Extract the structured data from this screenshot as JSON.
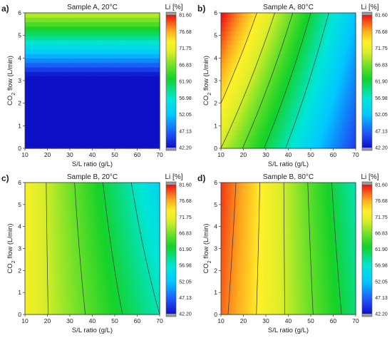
{
  "chart_data": [
    {
      "type": "heatmap",
      "panel_label": "a)",
      "title": "Sample A, 20°C",
      "xlabel": "S/L ratio (g/L)",
      "ylabel_main": "CO",
      "ylabel_sub": "2",
      "ylabel_rest": " flow (L/min)",
      "xlim": [
        10,
        70
      ],
      "ylim": [
        0,
        6
      ],
      "xticks": [
        "10",
        "20",
        "30",
        "40",
        "50",
        "60",
        "70"
      ],
      "yticks": [
        "0",
        "1",
        "2",
        "3",
        "4",
        "5",
        "6"
      ],
      "colorbar_title": "Li [%]",
      "grid": [
        [
          70,
          74,
          10
        ],
        [
          70,
          74,
          70
        ],
        [
          42,
          50,
          10
        ],
        [
          42,
          50,
          70
        ]
      ],
      "contour_levels": [
        70,
        66,
        62,
        58,
        54
      ]
    },
    {
      "type": "heatmap",
      "panel_label": "b)",
      "title": "Sample A, 80°C",
      "xlabel": "S/L ratio (g/L)",
      "ylabel_main": "CO",
      "ylabel_sub": "2",
      "ylabel_rest": " flow (L/min)",
      "xlim": [
        10,
        70
      ],
      "ylim": [
        0,
        6
      ],
      "xticks": [
        "10",
        "20",
        "30",
        "40",
        "50",
        "60",
        "70"
      ],
      "yticks": [
        "0",
        "1",
        "2",
        "3",
        "4",
        "5",
        "6"
      ],
      "colorbar_title": "Li [%]",
      "grid": [
        [
          10,
          0,
          70
        ],
        [
          10,
          6,
          82
        ],
        [
          70,
          0,
          45
        ],
        [
          70,
          6,
          52
        ]
      ],
      "contour_levels": [
        74,
        70,
        66,
        62,
        58
      ]
    },
    {
      "type": "heatmap",
      "panel_label": "c)",
      "title": "Sample B, 20°C",
      "xlabel": "S/L ratio (g/L)",
      "ylabel_main": "CO",
      "ylabel_sub": "2",
      "ylabel_rest": " flow (L/min)",
      "xlim": [
        10,
        70
      ],
      "ylim": [
        0,
        6
      ],
      "xticks": [
        "10",
        "20",
        "30",
        "40",
        "50",
        "60",
        "70"
      ],
      "yticks": [
        "0",
        "1",
        "2",
        "3",
        "4",
        "5",
        "6"
      ],
      "colorbar_title": "Li [%]",
      "grid": [
        [
          10,
          0,
          72.5
        ],
        [
          10,
          6,
          73
        ],
        [
          70,
          0,
          58
        ],
        [
          70,
          6,
          54
        ]
      ],
      "contour_levels": [
        70,
        66,
        62,
        58
      ]
    },
    {
      "type": "heatmap",
      "panel_label": "d)",
      "title": "Sample B, 80°C",
      "xlabel": "S/L ratio (g/L)",
      "ylabel_main": "CO",
      "ylabel_sub": "2",
      "ylabel_rest": " flow (L/min)",
      "xlim": [
        10,
        70
      ],
      "ylim": [
        0,
        6
      ],
      "xticks": [
        "10",
        "20",
        "30",
        "40",
        "50",
        "60",
        "70"
      ],
      "yticks": [
        "0",
        "1",
        "2",
        "3",
        "4",
        "5",
        "6"
      ],
      "colorbar_title": "Li [%]",
      "grid": [
        [
          10,
          0,
          79
        ],
        [
          10,
          6,
          80.5
        ],
        [
          70,
          0,
          60
        ],
        [
          70,
          6,
          58
        ]
      ],
      "contour_levels": [
        78,
        74,
        70,
        66,
        62
      ]
    }
  ],
  "colorbar": {
    "ticks": [
      "81.60",
      "76.68",
      "71.75",
      "66.83",
      "61.90",
      "56.98",
      "52.05",
      "47.13",
      "42.20"
    ],
    "min": 42.2,
    "max": 81.6
  }
}
